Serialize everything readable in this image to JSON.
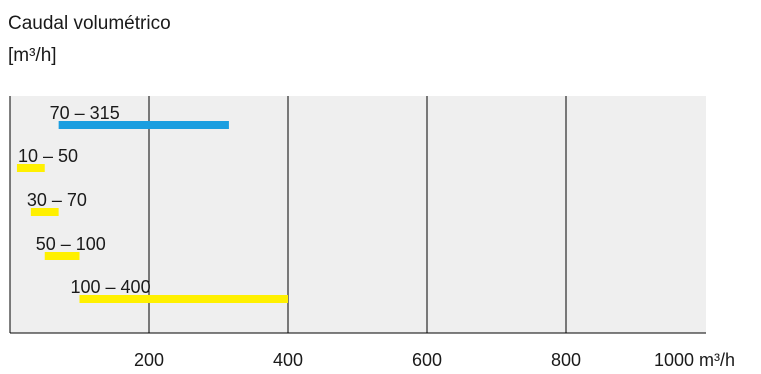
{
  "title": "Caudal volumétrico",
  "unit": "[m³/h]",
  "chart_data": {
    "type": "bar",
    "orientation": "horizontal-range",
    "title": "Caudal volumétrico",
    "ylabel": "[m³/h]",
    "xlabel": "m³/h",
    "xlim": [
      0,
      1000
    ],
    "x_ticks": [
      200,
      400,
      600,
      800,
      1000
    ],
    "x_tick_labels": [
      "200",
      "400",
      "600",
      "800",
      "1000 m³/h"
    ],
    "grid": true,
    "colors": {
      "plot_background": "#efefef",
      "gridline": "#000000",
      "blue": "#1a9ee0",
      "yellow": "#fff000"
    },
    "ranges": [
      {
        "label": "70 – 315",
        "start": 70,
        "end": 315,
        "color": "#1a9ee0"
      },
      {
        "label": "10 – 50",
        "start": 10,
        "end": 50,
        "color": "#fff000"
      },
      {
        "label": "30 – 70",
        "start": 30,
        "end": 70,
        "color": "#fff000"
      },
      {
        "label": "50 – 100",
        "start": 50,
        "end": 100,
        "color": "#fff000"
      },
      {
        "label": "100 – 400",
        "start": 100,
        "end": 400,
        "color": "#fff000"
      }
    ]
  }
}
